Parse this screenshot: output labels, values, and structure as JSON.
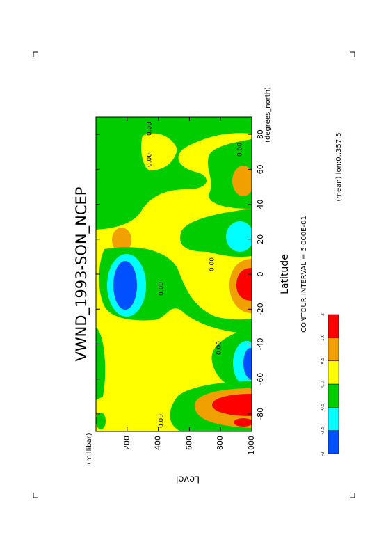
{
  "chart_data": {
    "type": "contour",
    "title": "VWND_1993-SON_NCEP",
    "xlabel": "Latitude",
    "xunits": "(degrees_north)",
    "ylabel": "Level",
    "yunits": "(millibar)",
    "xlim": [
      -90,
      90
    ],
    "xticks": [
      -80,
      -60,
      -40,
      -20,
      0,
      20,
      40,
      60,
      80
    ],
    "ylim": [
      0,
      1000
    ],
    "yticks": [
      200,
      400,
      600,
      800,
      1000
    ],
    "yreverse": true,
    "rotated": true,
    "annotations": [
      "CONTOUR INTERVAL = 5.000E-01",
      "(mean) lon:0..357.5"
    ],
    "contour_labels": [
      "0.00",
      "0.00",
      "0.00",
      "0.00",
      "0.00",
      "0.00",
      "0.00"
    ],
    "colorbar": {
      "levels": [
        -2,
        -1.5,
        -0.5,
        {
          "value": 0,
          "label": "0.0"
        },
        0.5,
        {
          "value": 1,
          "label": "1.0"
        },
        2
      ],
      "colors": [
        "#0050ff",
        "#00ffff",
        "#00cc00",
        "#ffff00",
        "#f0a000",
        "#ff0000"
      ]
    }
  }
}
